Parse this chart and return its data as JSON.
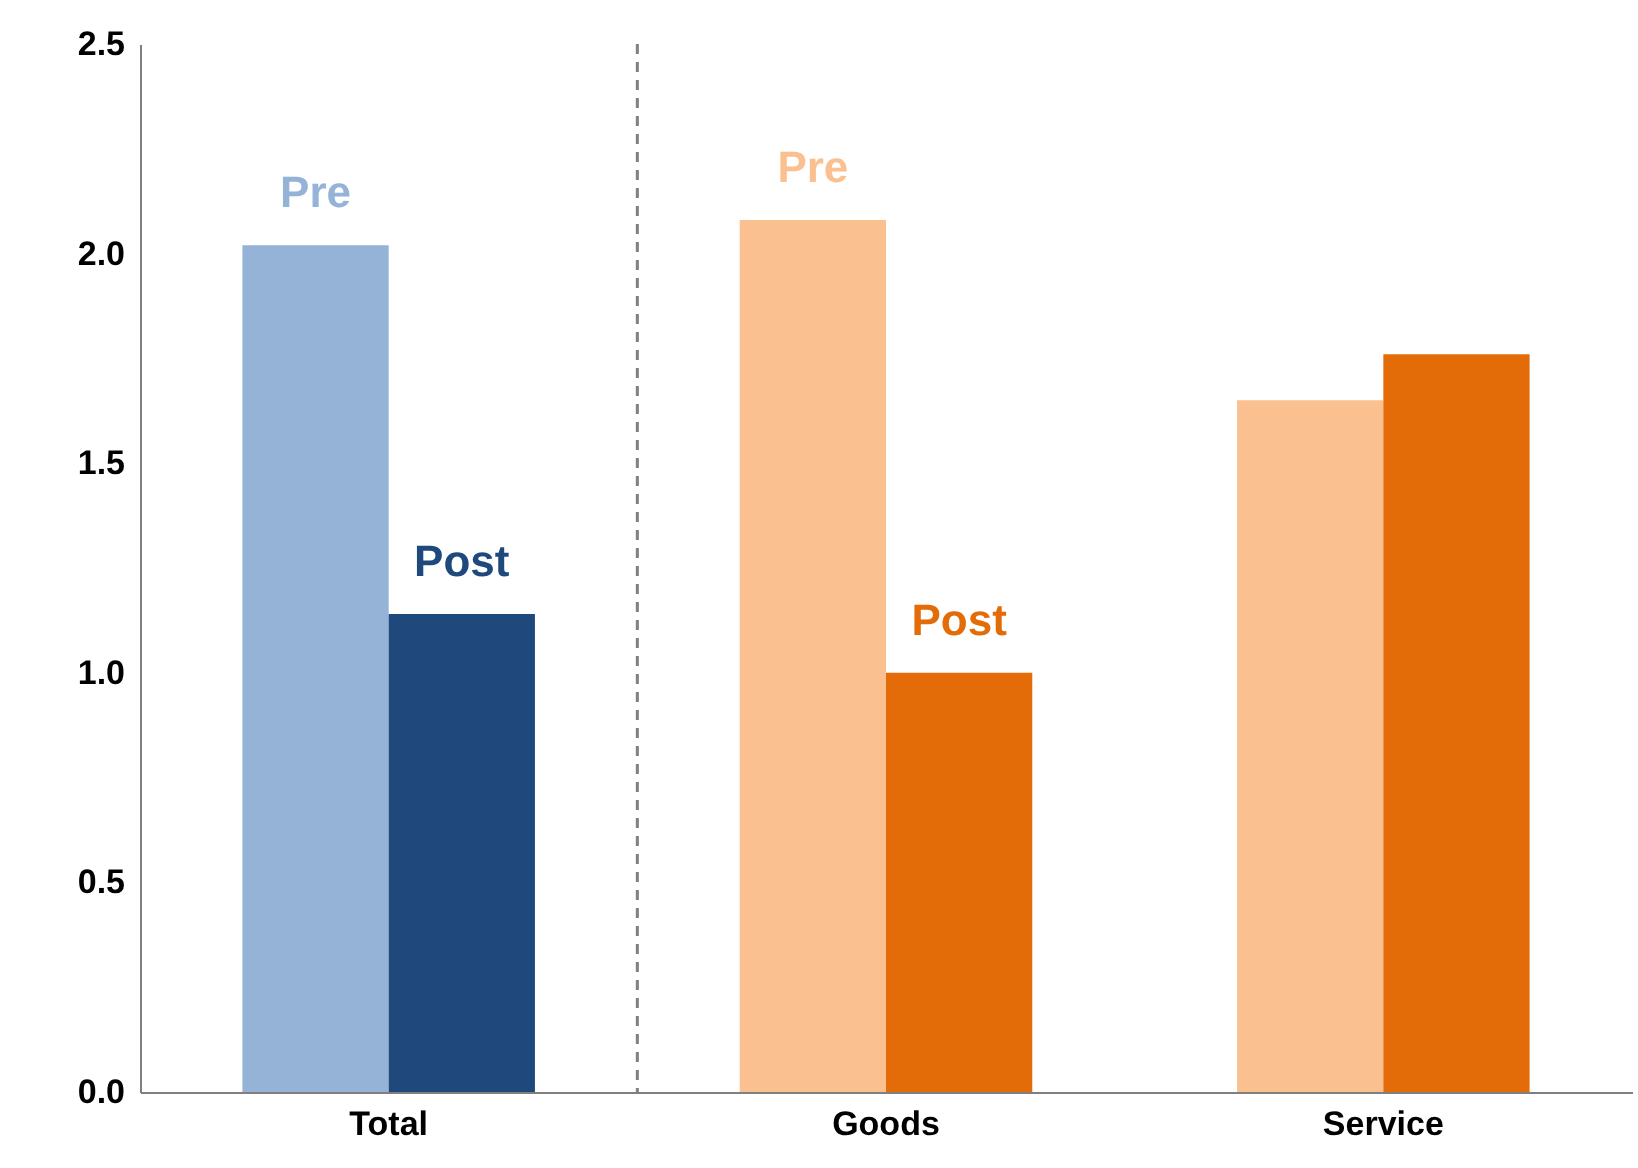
{
  "chart_data": {
    "type": "bar",
    "categories": [
      "Total",
      "Goods",
      "Service"
    ],
    "series": [
      {
        "colors": [
          "#95b3d7",
          "#fac090",
          "#fac090"
        ],
        "values": [
          2.02,
          2.08,
          1.65
        ]
      },
      {
        "colors": [
          "#1f497d",
          "#e36c09",
          "#e36c09"
        ],
        "values": [
          1.14,
          1.0,
          1.76
        ]
      }
    ],
    "ylim": [
      0,
      2.5
    ],
    "yticks": [
      {
        "value": 0,
        "label": "0.0"
      },
      {
        "value": 0.5,
        "label": "0.5"
      },
      {
        "value": 1,
        "label": "1.0"
      },
      {
        "value": 1.5,
        "label": "1.5"
      },
      {
        "value": 2,
        "label": "2.0"
      },
      {
        "value": 2.5,
        "label": "2.5"
      }
    ],
    "grid": false,
    "annotations": [
      {
        "text": "Pre",
        "x": "Total",
        "y": 2.02
      },
      {
        "text": "Post",
        "x": "Total",
        "y": 1.14
      },
      {
        "text": "Pre",
        "x": "Goods",
        "y": 2.08
      },
      {
        "text": "Post",
        "x": "Goods",
        "y": 1.0
      }
    ]
  }
}
